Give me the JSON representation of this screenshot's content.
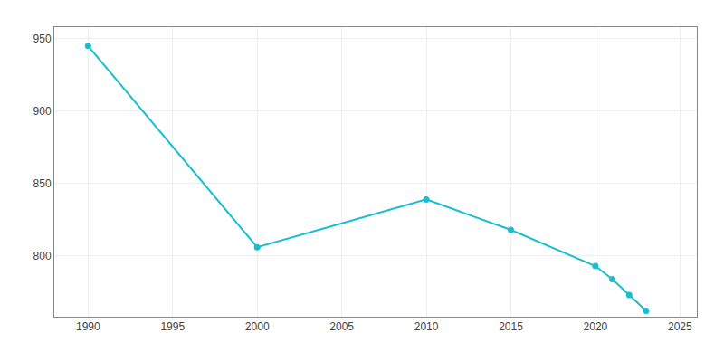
{
  "chart_data": {
    "type": "line",
    "x": [
      1990,
      2000,
      2010,
      2015,
      2020,
      2021,
      2022,
      2023
    ],
    "values": [
      945,
      806,
      839,
      818,
      793,
      784,
      773,
      762
    ],
    "color": "#17BECF",
    "marker": "circle",
    "xlim": [
      1988,
      2026
    ],
    "ylim": [
      758,
      958
    ],
    "xticks": [
      1990,
      1995,
      2000,
      2005,
      2010,
      2015,
      2020,
      2025
    ],
    "yticks": [
      800,
      850,
      900,
      950
    ],
    "grid": true
  }
}
